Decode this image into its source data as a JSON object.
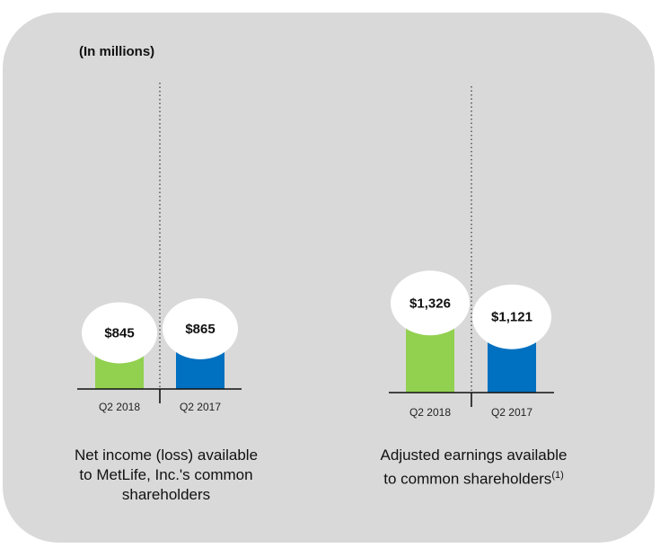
{
  "units_label": "(In millions)",
  "colors": {
    "current": "#92d050",
    "prior": "#0070c0",
    "bubble": "#ffffff",
    "panel": "#d9d9d9"
  },
  "chart_data": [
    {
      "type": "bar",
      "title": "Net income (loss) available to MetLife, Inc.'s common shareholders",
      "categories": [
        "Q2 2018",
        "Q2 2017"
      ],
      "values": [
        845,
        865
      ],
      "value_labels": [
        "$845",
        "$865"
      ],
      "units": "millions USD",
      "caption_lines": [
        "Net income (loss) available",
        "to MetLife, Inc.'s common",
        "shareholders"
      ]
    },
    {
      "type": "bar",
      "title": "Adjusted earnings available to common shareholders",
      "categories": [
        "Q2 2018",
        "Q2 2017"
      ],
      "values": [
        1326,
        1121
      ],
      "value_labels": [
        "$1,326",
        "$1,121"
      ],
      "units": "millions USD",
      "caption_lines": [
        "Adjusted earnings available",
        "to common shareholders"
      ],
      "footnote": "(1)"
    }
  ]
}
